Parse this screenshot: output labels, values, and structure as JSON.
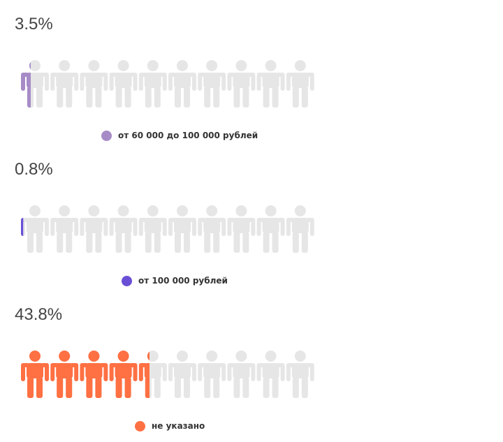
{
  "chart_data": {
    "type": "pictogram",
    "icons_per_row": 10,
    "icon": "person-icon",
    "empty_color": "#e6e6e6",
    "charts": [
      {
        "value_label": "3.5%",
        "value": 3.5,
        "legend": "от 60 000 до 100 000 рублей",
        "color": "#a78bc7"
      },
      {
        "value_label": "0.8%",
        "value": 0.8,
        "legend": "от 100 000 рублей",
        "color": "#6a4fd6"
      },
      {
        "value_label": "43.8%",
        "value": 43.8,
        "legend": "не указано",
        "color": "#ff7043"
      }
    ]
  }
}
